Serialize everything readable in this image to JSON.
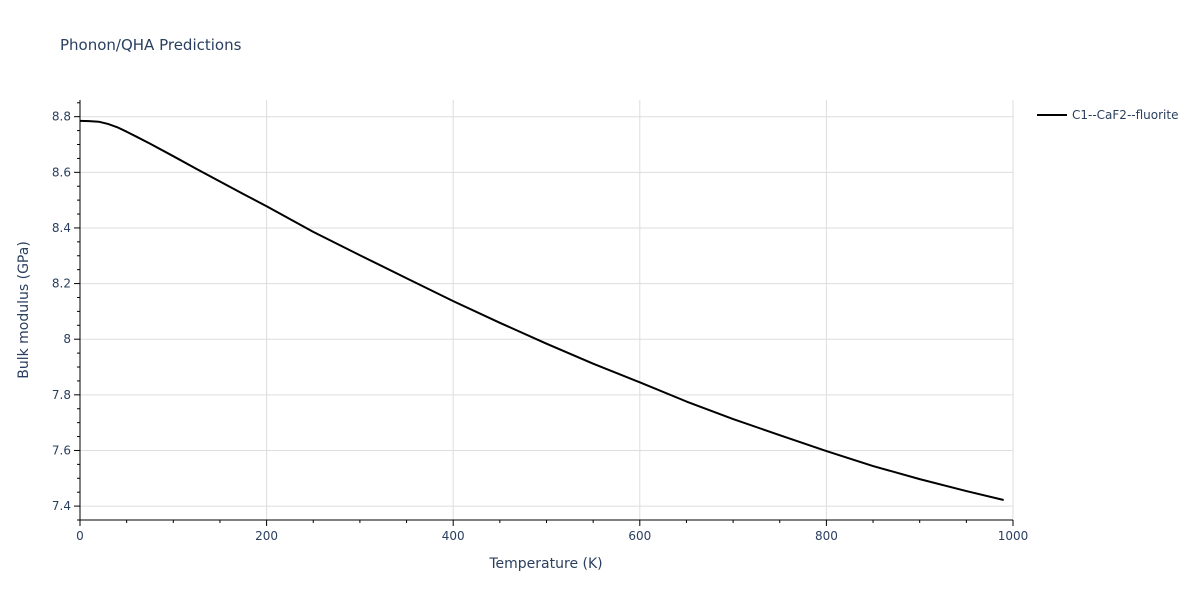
{
  "chart_data": {
    "type": "line",
    "title": "Phonon/QHA Predictions",
    "xlabel": "Temperature (K)",
    "ylabel": "Bulk modulus (GPa)",
    "xlim": [
      0,
      1000
    ],
    "ylim": [
      7.35,
      8.86
    ],
    "x_ticks": [
      0,
      200,
      400,
      600,
      800,
      1000
    ],
    "x_tick_labels": [
      "0",
      "200",
      "400",
      "600",
      "800",
      "1000"
    ],
    "y_ticks": [
      7.4,
      7.6,
      7.8,
      8.0,
      8.2,
      8.4,
      8.6,
      8.8
    ],
    "y_tick_labels": [
      "7.4",
      "7.6",
      "7.8",
      "8",
      "8.2",
      "8.4",
      "8.6",
      "8.8"
    ],
    "grid": true,
    "legend_position": "top-right outside",
    "series": [
      {
        "name": "C1--CaF2--fluorite",
        "color": "#000000",
        "x": [
          0,
          10,
          20,
          30,
          40,
          50,
          60,
          75,
          100,
          125,
          150,
          175,
          200,
          250,
          300,
          350,
          400,
          450,
          500,
          550,
          600,
          650,
          700,
          750,
          800,
          850,
          900,
          950,
          990
        ],
        "y": [
          8.785,
          8.784,
          8.782,
          8.774,
          8.762,
          8.746,
          8.729,
          8.703,
          8.658,
          8.612,
          8.567,
          8.522,
          8.478,
          8.386,
          8.302,
          8.219,
          8.137,
          8.059,
          7.984,
          7.912,
          7.845,
          7.776,
          7.713,
          7.655,
          7.598,
          7.544,
          7.497,
          7.454,
          7.422
        ]
      }
    ]
  }
}
